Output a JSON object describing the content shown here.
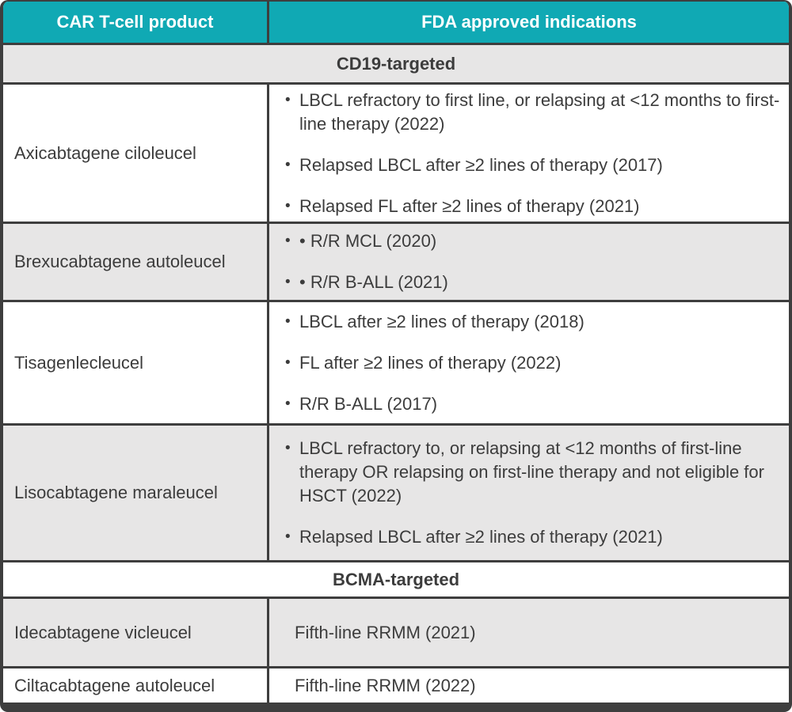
{
  "colors": {
    "header_bg": "#10a9b4",
    "header_text": "#ffffff",
    "row_alt_bg": "#e7e6e6",
    "row_bg": "#ffffff",
    "border": "#3e3e3e",
    "body_text": "#3c3c3c"
  },
  "icons": {
    "bullet": "•"
  },
  "table": {
    "columns": [
      "CAR T-cell product",
      "FDA approved indications"
    ],
    "sections": [
      "CD19-targeted",
      "BCMA-targeted"
    ],
    "rows": [
      {
        "product": "Axicabtagene ciloleucel",
        "bullets": [
          "LBCL refractory to first line, or relapsing at <12 months to first-line therapy (2022)",
          "Relapsed LBCL after ≥2 lines of therapy (2017)",
          "Relapsed FL after ≥2 lines of therapy (2021)"
        ]
      },
      {
        "product": "Brexucabtagene autoleucel",
        "bullets": [
          "• R/R MCL (2020)",
          "• R/R B-ALL (2021)"
        ]
      },
      {
        "product": "Tisagenlecleucel",
        "bullets": [
          "LBCL after ≥2 lines of therapy (2018)",
          "FL after ≥2 lines of therapy (2022)",
          "R/R B-ALL (2017)"
        ]
      },
      {
        "product": "Lisocabtagene maraleucel",
        "bullets": [
          "LBCL refractory to, or relapsing at <12 months of first-line therapy OR relapsing on first-line therapy and not eligible for HSCT (2022)",
          "Relapsed LBCL after ≥2 lines of therapy (2021)"
        ]
      },
      {
        "product": "Idecabtagene vicleucel",
        "indication": "Fifth-line RRMM (2021)"
      },
      {
        "product": "Ciltacabtagene autoleucel",
        "indication": "Fifth-line RRMM (2022)"
      }
    ]
  }
}
